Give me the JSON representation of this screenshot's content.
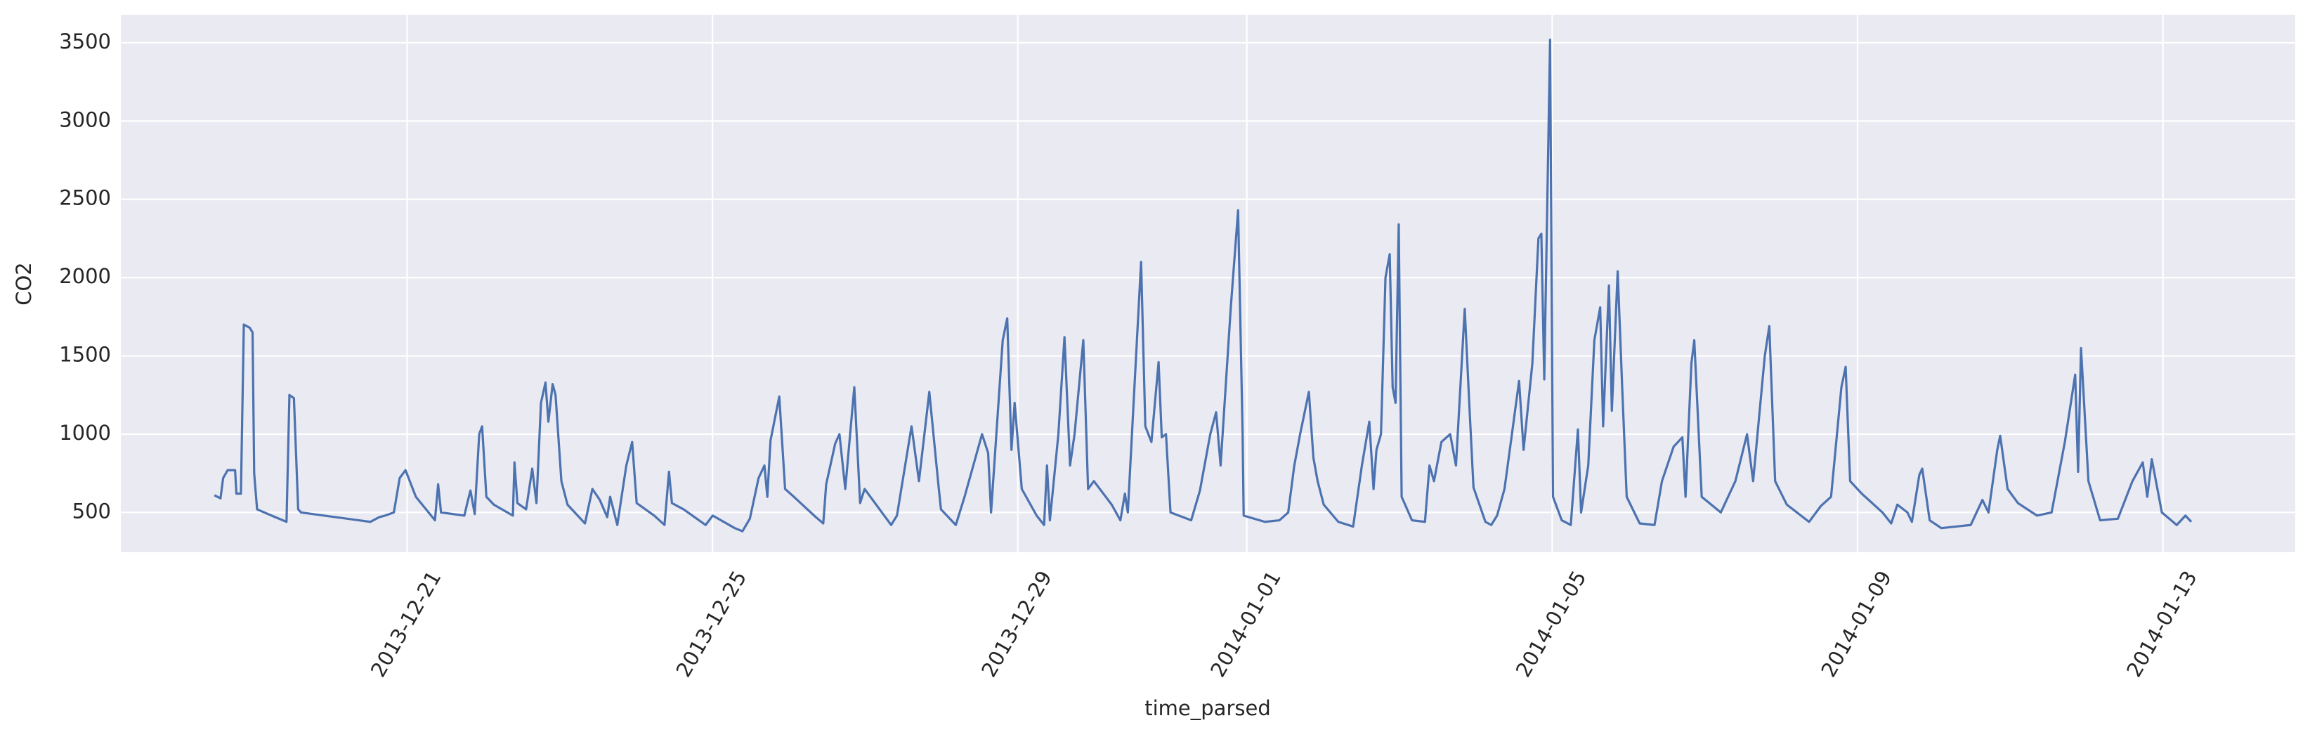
{
  "chart_data": {
    "type": "line",
    "x_label": "time_parsed",
    "y_label": "CO2",
    "color": "#4c72b0",
    "grid": true,
    "x": [
      "2013-12-18 11:25",
      "2013-12-18 13:20",
      "2013-12-18 14:10",
      "2013-12-18 15:35",
      "2013-12-18 17:55",
      "2013-12-18 18:20",
      "2013-12-18 19:45",
      "2013-12-18 20:40",
      "2013-12-18 22:30",
      "2013-12-18 23:25",
      "2013-12-18 23:55",
      "2013-12-19 00:50",
      "2013-12-19 05:25",
      "2013-12-19 10:05",
      "2013-12-19 11:00",
      "2013-12-19 12:25",
      "2013-12-19 13:45",
      "2013-12-19 14:40",
      "2013-12-20 12:25",
      "2013-12-20 15:15",
      "2013-12-20 17:05",
      "2013-12-20 19:50",
      "2013-12-20 21:40",
      "2013-12-20 23:30",
      "2013-12-21 02:45",
      "2013-12-21 08:45",
      "2013-12-21 09:45",
      "2013-12-21 10:40",
      "2013-12-21 18:00",
      "2013-12-21 18:55",
      "2013-12-21 19:55",
      "2013-12-21 21:15",
      "2013-12-21 22:40",
      "2013-12-21 23:35",
      "2013-12-22 00:55",
      "2013-12-22 03:15",
      "2013-12-22 09:15",
      "2013-12-22 09:45",
      "2013-12-22 10:40",
      "2013-12-22 13:25",
      "2013-12-22 15:20",
      "2013-12-22 16:40",
      "2013-12-22 18:05",
      "2013-12-22 19:30",
      "2013-12-22 20:25",
      "2013-12-22 21:45",
      "2013-12-22 22:40",
      "2013-12-23 00:30",
      "2013-12-23 02:25",
      "2013-12-23 07:55",
      "2013-12-23 10:15",
      "2013-12-23 12:35",
      "2013-12-23 14:55",
      "2013-12-23 15:50",
      "2013-12-23 18:05",
      "2013-12-23 20:55",
      "2013-12-23 22:45",
      "2013-12-24 00:10",
      "2013-12-24 05:40",
      "2013-12-24 08:55",
      "2013-12-24 10:20",
      "2013-12-24 11:15",
      "2013-12-24 14:55",
      "2013-12-24 21:50",
      "2013-12-25 00:05",
      "2013-12-25 07:00",
      "2013-12-25 09:25",
      "2013-12-25 11:45",
      "2013-12-25 14:30",
      "2013-12-25 16:20",
      "2013-12-25 17:15",
      "2013-12-25 18:15",
      "2013-12-25 21:00",
      "2013-12-25 22:50",
      "2013-12-26 01:35",
      "2013-12-26 08:30",
      "2013-12-26 10:50",
      "2013-12-26 11:45",
      "2013-12-26 14:35",
      "2013-12-26 15:55",
      "2013-12-26 17:45",
      "2013-12-26 20:35",
      "2013-12-26 22:25",
      "2013-12-26 23:50",
      "2013-12-27 08:10",
      "2013-12-27 10:00",
      "2013-12-27 14:35",
      "2013-12-27 16:55",
      "2013-12-27 20:10",
      "2013-12-27 22:55",
      "2013-12-27 23:50",
      "2013-12-28 04:30",
      "2013-12-28 07:15",
      "2013-12-28 12:45",
      "2013-12-28 14:40",
      "2013-12-28 15:35",
      "2013-12-28 19:15",
      "2013-12-28 20:40",
      "2013-12-28 22:00",
      "2013-12-28 23:00",
      "2013-12-29 01:15",
      "2013-12-29 05:55",
      "2013-12-29 08:15",
      "2013-12-29 09:10",
      "2013-12-29 10:05",
      "2013-12-29 12:45",
      "2013-12-29 14:40",
      "2013-12-29 16:25",
      "2013-12-29 17:50",
      "2013-12-29 20:35",
      "2013-12-29 22:05",
      "2013-12-29 23:55",
      "2013-12-30 05:30",
      "2013-12-30 08:15",
      "2013-12-30 09:40",
      "2013-12-30 10:35",
      "2013-12-30 12:55",
      "2013-12-30 14:45",
      "2013-12-30 16:05",
      "2013-12-30 18:00",
      "2013-12-30 20:15",
      "2013-12-30 21:15",
      "2013-12-30 22:35",
      "2013-12-31 00:00",
      "2013-12-31 06:30",
      "2013-12-31 09:15",
      "2013-12-31 12:30",
      "2013-12-31 14:20",
      "2013-12-31 15:45",
      "2013-12-31 18:55",
      "2013-12-31 21:15",
      "2013-12-31 22:40",
      "2013-12-31 23:00",
      "2014-01-01 05:40",
      "2014-01-01 10:15",
      "2014-01-01 13:00",
      "2014-01-01 14:55",
      "2014-01-01 16:45",
      "2014-01-01 19:30",
      "2014-01-01 20:55",
      "2014-01-01 22:15",
      "2014-01-02 00:10",
      "2014-01-02 04:45",
      "2014-01-02 09:25",
      "2014-01-02 12:10",
      "2014-01-02 14:30",
      "2014-01-02 15:50",
      "2014-01-02 16:45",
      "2014-01-02 18:10",
      "2014-01-02 19:35",
      "2014-01-02 20:55",
      "2014-01-02 21:50",
      "2014-01-02 22:45",
      "2014-01-02 23:45",
      "2014-01-03 00:40",
      "2014-01-03 03:55",
      "2014-01-03 08:00",
      "2014-01-03 09:25",
      "2014-01-03 10:50",
      "2014-01-03 13:10",
      "2014-01-03 15:55",
      "2014-01-03 17:45",
      "2014-01-03 20:30",
      "2014-01-03 21:55",
      "2014-01-03 23:15",
      "2014-01-04 03:00",
      "2014-01-04 04:50",
      "2014-01-04 06:40",
      "2014-01-04 09:00",
      "2014-01-04 11:20",
      "2014-01-04 13:35",
      "2014-01-04 15:00",
      "2014-01-04 17:45",
      "2014-01-04 19:40",
      "2014-01-04 20:35",
      "2014-01-04 21:30",
      "2014-01-04 23:20",
      "2014-01-05 00:15",
      "2014-01-05 03:00",
      "2014-01-05 05:50",
      "2014-01-05 08:05",
      "2014-01-05 09:05",
      "2014-01-05 11:20",
      "2014-01-05 13:15",
      "2014-01-05 15:05",
      "2014-01-05 16:00",
      "2014-01-05 17:50",
      "2014-01-05 18:45",
      "2014-01-05 20:35",
      "2014-01-05 22:00",
      "2014-01-05 23:25",
      "2014-01-06 03:30",
      "2014-01-06 08:10",
      "2014-01-06 10:30",
      "2014-01-06 14:10",
      "2014-01-06 16:55",
      "2014-01-06 17:55",
      "2014-01-06 19:45",
      "2014-01-06 20:40",
      "2014-01-06 23:00",
      "2014-01-07 05:00",
      "2014-01-07 09:35",
      "2014-01-07 13:15",
      "2014-01-07 15:10",
      "2014-01-07 18:50",
      "2014-01-07 20:15",
      "2014-01-07 22:05",
      "2014-01-08 01:45",
      "2014-01-08 08:45",
      "2014-01-08 12:25",
      "2014-01-08 15:40",
      "2014-01-08 18:55",
      "2014-01-08 20:15",
      "2014-01-08 21:40",
      "2014-01-09 01:20",
      "2014-01-09 07:50",
      "2014-01-09 10:35",
      "2014-01-09 12:30",
      "2014-01-09 15:40",
      "2014-01-09 17:05",
      "2014-01-09 19:25",
      "2014-01-09 20:20",
      "2014-01-09 22:40",
      "2014-01-10 02:20",
      "2014-01-10 11:35",
      "2014-01-10 15:15",
      "2014-01-10 17:10",
      "2014-01-10 19:55",
      "2014-01-10 20:50",
      "2014-01-10 23:10",
      "2014-01-11 02:25",
      "2014-01-11 08:25",
      "2014-01-11 13:00",
      "2014-01-11 17:10",
      "2014-01-11 20:25",
      "2014-01-11 21:20",
      "2014-01-11 22:15",
      "2014-01-12 00:35",
      "2014-01-12 04:15",
      "2014-01-12 09:50",
      "2014-01-12 14:25",
      "2014-01-12 17:40",
      "2014-01-12 19:05",
      "2014-01-12 20:30",
      "2014-01-12 23:40",
      "2014-01-13 04:20",
      "2014-01-13 07:05",
      "2014-01-13 08:55"
    ],
    "values": [
      610,
      590,
      720,
      770,
      770,
      620,
      620,
      1700,
      1680,
      1650,
      750,
      520,
      480,
      440,
      1250,
      1230,
      520,
      500,
      440,
      470,
      480,
      500,
      720,
      770,
      600,
      450,
      680,
      500,
      480,
      560,
      640,
      490,
      1000,
      1050,
      600,
      550,
      480,
      820,
      560,
      520,
      780,
      560,
      1200,
      1330,
      1080,
      1320,
      1250,
      700,
      550,
      430,
      650,
      580,
      470,
      600,
      420,
      800,
      950,
      560,
      480,
      420,
      760,
      560,
      520,
      420,
      480,
      400,
      380,
      460,
      720,
      800,
      600,
      960,
      1240,
      650,
      600,
      470,
      430,
      680,
      940,
      1000,
      650,
      1300,
      560,
      650,
      420,
      480,
      1050,
      700,
      1270,
      700,
      520,
      420,
      600,
      1000,
      880,
      500,
      1600,
      1740,
      900,
      1200,
      650,
      480,
      420,
      800,
      450,
      1000,
      1620,
      800,
      1000,
      1600,
      650,
      700,
      550,
      450,
      620,
      500,
      1400,
      2100,
      1050,
      950,
      1460,
      980,
      1000,
      500,
      450,
      640,
      1000,
      1140,
      800,
      1800,
      2430,
      1000,
      480,
      440,
      450,
      500,
      800,
      1000,
      1270,
      850,
      700,
      550,
      440,
      410,
      800,
      1080,
      650,
      900,
      1000,
      2000,
      2150,
      1300,
      1200,
      2340,
      600,
      450,
      440,
      800,
      700,
      950,
      1000,
      800,
      1800,
      1200,
      660,
      440,
      420,
      480,
      650,
      1000,
      1340,
      900,
      1450,
      2250,
      2280,
      1350,
      3520,
      600,
      450,
      420,
      1030,
      500,
      800,
      1600,
      1810,
      1050,
      1950,
      1150,
      2040,
      1300,
      600,
      430,
      420,
      700,
      920,
      980,
      600,
      1450,
      1600,
      600,
      500,
      700,
      1000,
      700,
      1500,
      1690,
      700,
      550,
      440,
      540,
      600,
      1300,
      1430,
      700,
      620,
      500,
      430,
      550,
      500,
      440,
      740,
      780,
      450,
      400,
      420,
      580,
      500,
      900,
      990,
      650,
      560,
      480,
      500,
      950,
      1380,
      760,
      1550,
      700,
      450,
      460,
      700,
      820,
      600,
      840,
      500,
      420,
      480,
      440
    ],
    "xlim": [
      "2013-12-17 06:00",
      "2014-01-14 17:36"
    ],
    "xticks": [
      "2013-12-21",
      "2013-12-25",
      "2013-12-29",
      "2014-01-01",
      "2014-01-05",
      "2014-01-09",
      "2014-01-13"
    ],
    "ylim": [
      246,
      3679
    ],
    "yticks": [
      500,
      1000,
      1500,
      2000,
      2500,
      3000,
      3500
    ]
  }
}
